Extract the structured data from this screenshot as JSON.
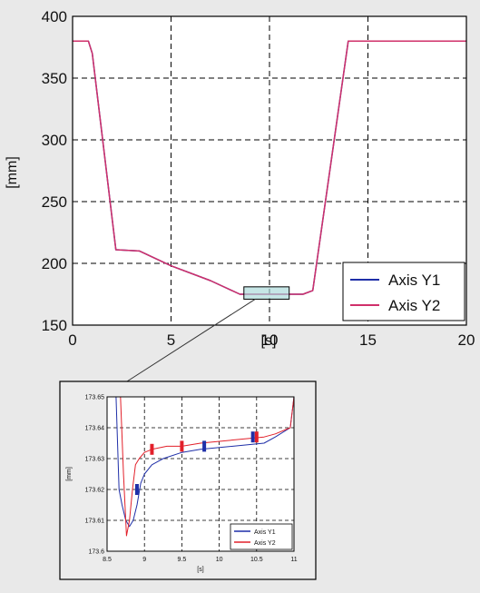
{
  "chart_data": [
    {
      "type": "line",
      "title": "",
      "xlabel": "[s]",
      "ylabel": "[mm]",
      "xlim": [
        0,
        20
      ],
      "ylim": [
        150,
        400
      ],
      "xticks": [
        0,
        5,
        10,
        15,
        20
      ],
      "yticks": [
        150,
        200,
        250,
        300,
        350,
        400
      ],
      "xtick_labels": [
        "0",
        "5",
        "10",
        "15",
        "20"
      ],
      "ytick_labels": [
        "150",
        "200",
        "250",
        "300",
        "350",
        "400"
      ],
      "grid": true,
      "legend_position": "bottom-right",
      "series": [
        {
          "name": "Axis Y1",
          "color": "#1f2fa8",
          "x": [
            0,
            0.8,
            1.0,
            2.2,
            3.4,
            5.0,
            7.0,
            8.5,
            11.0,
            11.7,
            12.2,
            14.0,
            20.0
          ],
          "y": [
            380,
            380,
            370,
            211,
            210,
            198,
            186,
            175,
            175,
            175,
            178,
            380,
            380
          ]
        },
        {
          "name": "Axis Y2",
          "color": "#d0306a",
          "x": [
            0,
            0.8,
            1.0,
            2.2,
            3.4,
            5.0,
            7.0,
            8.5,
            11.0,
            11.7,
            12.2,
            14.0,
            20.0
          ],
          "y": [
            380,
            380,
            370,
            211,
            210,
            198,
            186,
            175,
            175,
            175,
            178,
            380,
            380
          ]
        }
      ],
      "highlight_box": {
        "x": [
          8.7,
          11.0
        ],
        "y": [
          171,
          181
        ]
      }
    },
    {
      "type": "line",
      "title": "",
      "xlabel": "[s]",
      "ylabel": "[mm]",
      "xlim": [
        8.5,
        11
      ],
      "ylim": [
        173.6,
        173.65
      ],
      "xticks": [
        8.5,
        9,
        9.5,
        10,
        10.5,
        11
      ],
      "yticks": [
        173.6,
        173.61,
        173.62,
        173.63,
        173.64,
        173.65
      ],
      "xtick_labels": [
        "8.5",
        "9",
        "9.5",
        "10",
        "10.5",
        "11"
      ],
      "ytick_labels": [
        "173.6",
        "173.61",
        "173.62",
        "173.63",
        "173.64",
        "173.65"
      ],
      "grid": true,
      "legend_position": "bottom-right",
      "series": [
        {
          "name": "Axis Y1",
          "color": "#1f2fa8",
          "x": [
            8.62,
            8.66,
            8.7,
            8.75,
            8.8,
            8.85,
            8.9,
            8.95,
            9.0,
            9.1,
            9.25,
            9.5,
            9.75,
            10.6,
            10.75,
            10.95,
            11.0
          ],
          "y": [
            173.65,
            173.62,
            173.615,
            173.61,
            173.608,
            173.61,
            173.615,
            173.622,
            173.625,
            173.628,
            173.63,
            173.632,
            173.633,
            173.635,
            173.637,
            173.64,
            173.65
          ]
        },
        {
          "name": "Axis Y2",
          "color": "#e2202a",
          "x": [
            8.68,
            8.72,
            8.76,
            8.8,
            8.84,
            8.88,
            8.93,
            9.0,
            9.1,
            9.3,
            9.5,
            9.75,
            10.6,
            10.75,
            10.95,
            11.0
          ],
          "y": [
            173.65,
            173.625,
            173.605,
            173.61,
            173.62,
            173.628,
            173.63,
            173.632,
            173.633,
            173.634,
            173.634,
            173.635,
            173.637,
            173.638,
            173.64,
            173.65
          ]
        }
      ]
    }
  ]
}
